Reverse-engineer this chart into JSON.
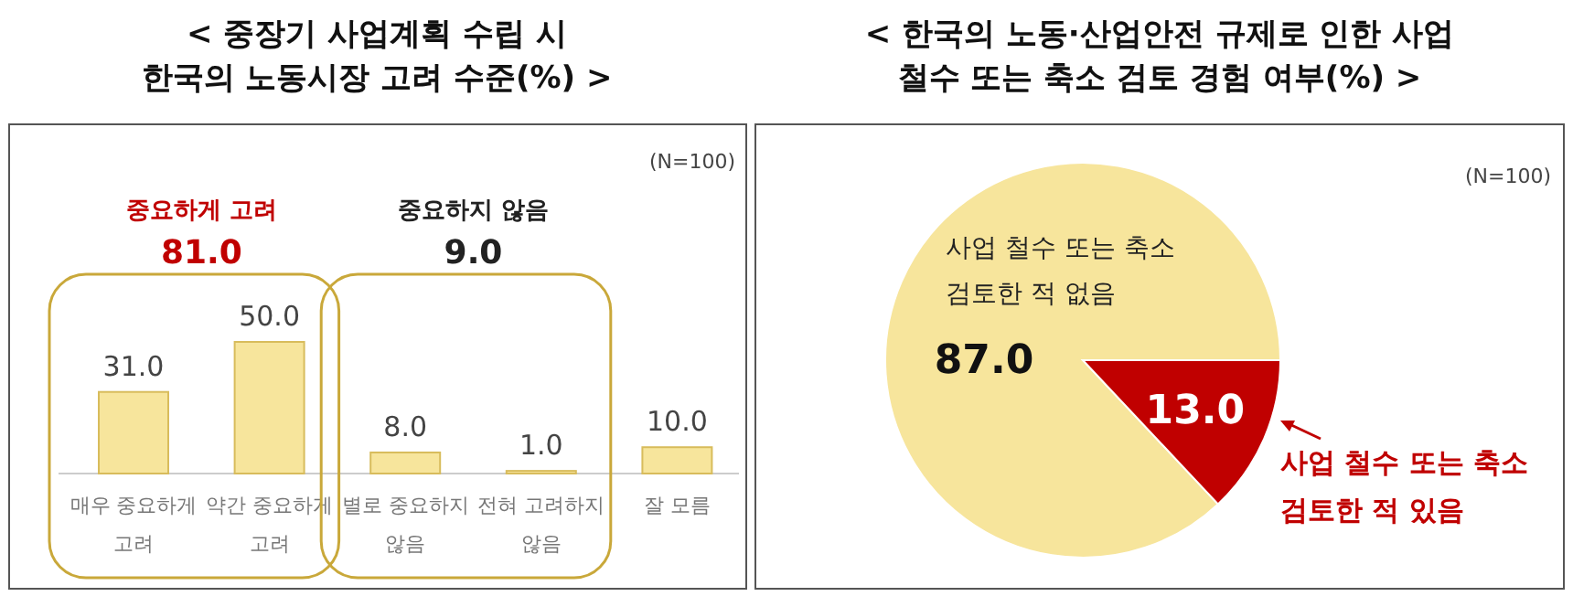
{
  "chart_data": [
    {
      "type": "bar",
      "title": "< 중장기 사업계획 수립 시 한국의 노동시장 고려 수준(%) >",
      "categories": [
        "매우 중요하게 고려",
        "약간 중요하게 고려",
        "별로 중요하지 않음",
        "전혀 고려하지 않음",
        "잘 모름"
      ],
      "values": [
        31.0,
        50.0,
        8.0,
        1.0,
        10.0
      ],
      "value_labels": [
        "31.0",
        "50.0",
        "8.0",
        "1.0",
        "10.0"
      ],
      "color": "#f7e59c",
      "annotations": [
        "중요하게 고려",
        "81.0",
        "중요하지 않음",
        "9.0",
        "(N=100)"
      ]
    },
    {
      "type": "pie",
      "title": "< 한국의 노동·산업안전 규제로 인한 사업 철수 또는 축소 검토 경험 여부(%) >",
      "categories": [
        "사업 철수 또는 축소 검토한 적 없음",
        "사업 철수 또는 축소 검토한 적 있음"
      ],
      "values": [
        87.0,
        13.0
      ],
      "value_labels": [
        "87.0",
        "13.0"
      ],
      "colors": [
        "#f7e59c",
        "#c00000"
      ],
      "annotations": [
        "(N=100)"
      ]
    }
  ]
}
